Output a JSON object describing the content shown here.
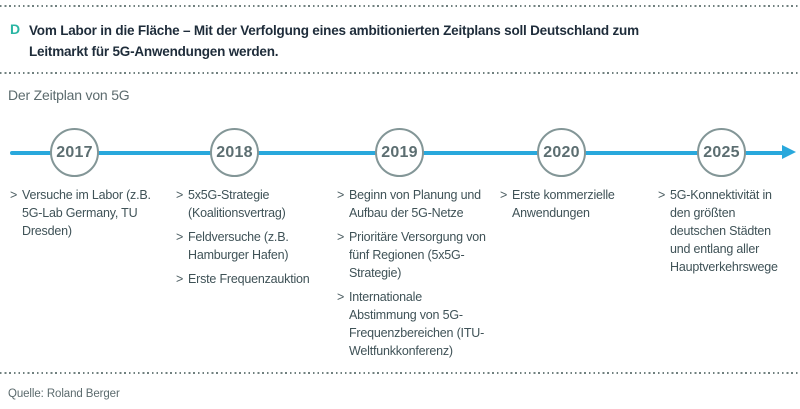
{
  "header": {
    "section_label": "D",
    "title_lines": [
      "Vom Labor in die Fläche – Mit der Verfolgung eines ambitionierten Zeitplans soll Deutschland zum",
      "Leitmarkt für 5G-Anwendungen werden."
    ]
  },
  "subtitle": "Der Zeitplan von 5G",
  "timeline": {
    "bullet_marker": ">",
    "milestones": [
      {
        "year": "2017",
        "items": [
          "Versuche im Labor (z.B. 5G-Lab Germany, TU Dresden)"
        ]
      },
      {
        "year": "2018",
        "items": [
          "5x5G-Strategie (Koalitionsvertrag)",
          "Feldversuche (z.B. Hamburger Hafen)",
          "Erste Frequenzauktion"
        ]
      },
      {
        "year": "2019",
        "items": [
          "Beginn von Planung und Aufbau der 5G-Netze",
          "Prioritäre Versorgung von fünf Regionen (5x5G-Strategie)",
          "Internationale Abstimmung von 5G-Frequenzbereichen (ITU-Weltfunkkonferenz)"
        ]
      },
      {
        "year": "2020",
        "items": [
          "Erste kommerzielle Anwendungen"
        ]
      },
      {
        "year": "2025",
        "items": [
          "5G-Konnektivität in den größten deutschen Städten und entlang aller Hauptverkehrswege"
        ]
      }
    ]
  },
  "source": "Quelle: Roland Berger",
  "colors": {
    "accent_teal": "#2ab5a3",
    "timeline_blue": "#29a8dc",
    "title_dark": "#1e2c3a",
    "circle_border": "#839697",
    "year_text": "#5c6e71",
    "body_text": "#3f5257",
    "muted_text": "#5c6b6e",
    "dotted_rule": "#70807f"
  }
}
